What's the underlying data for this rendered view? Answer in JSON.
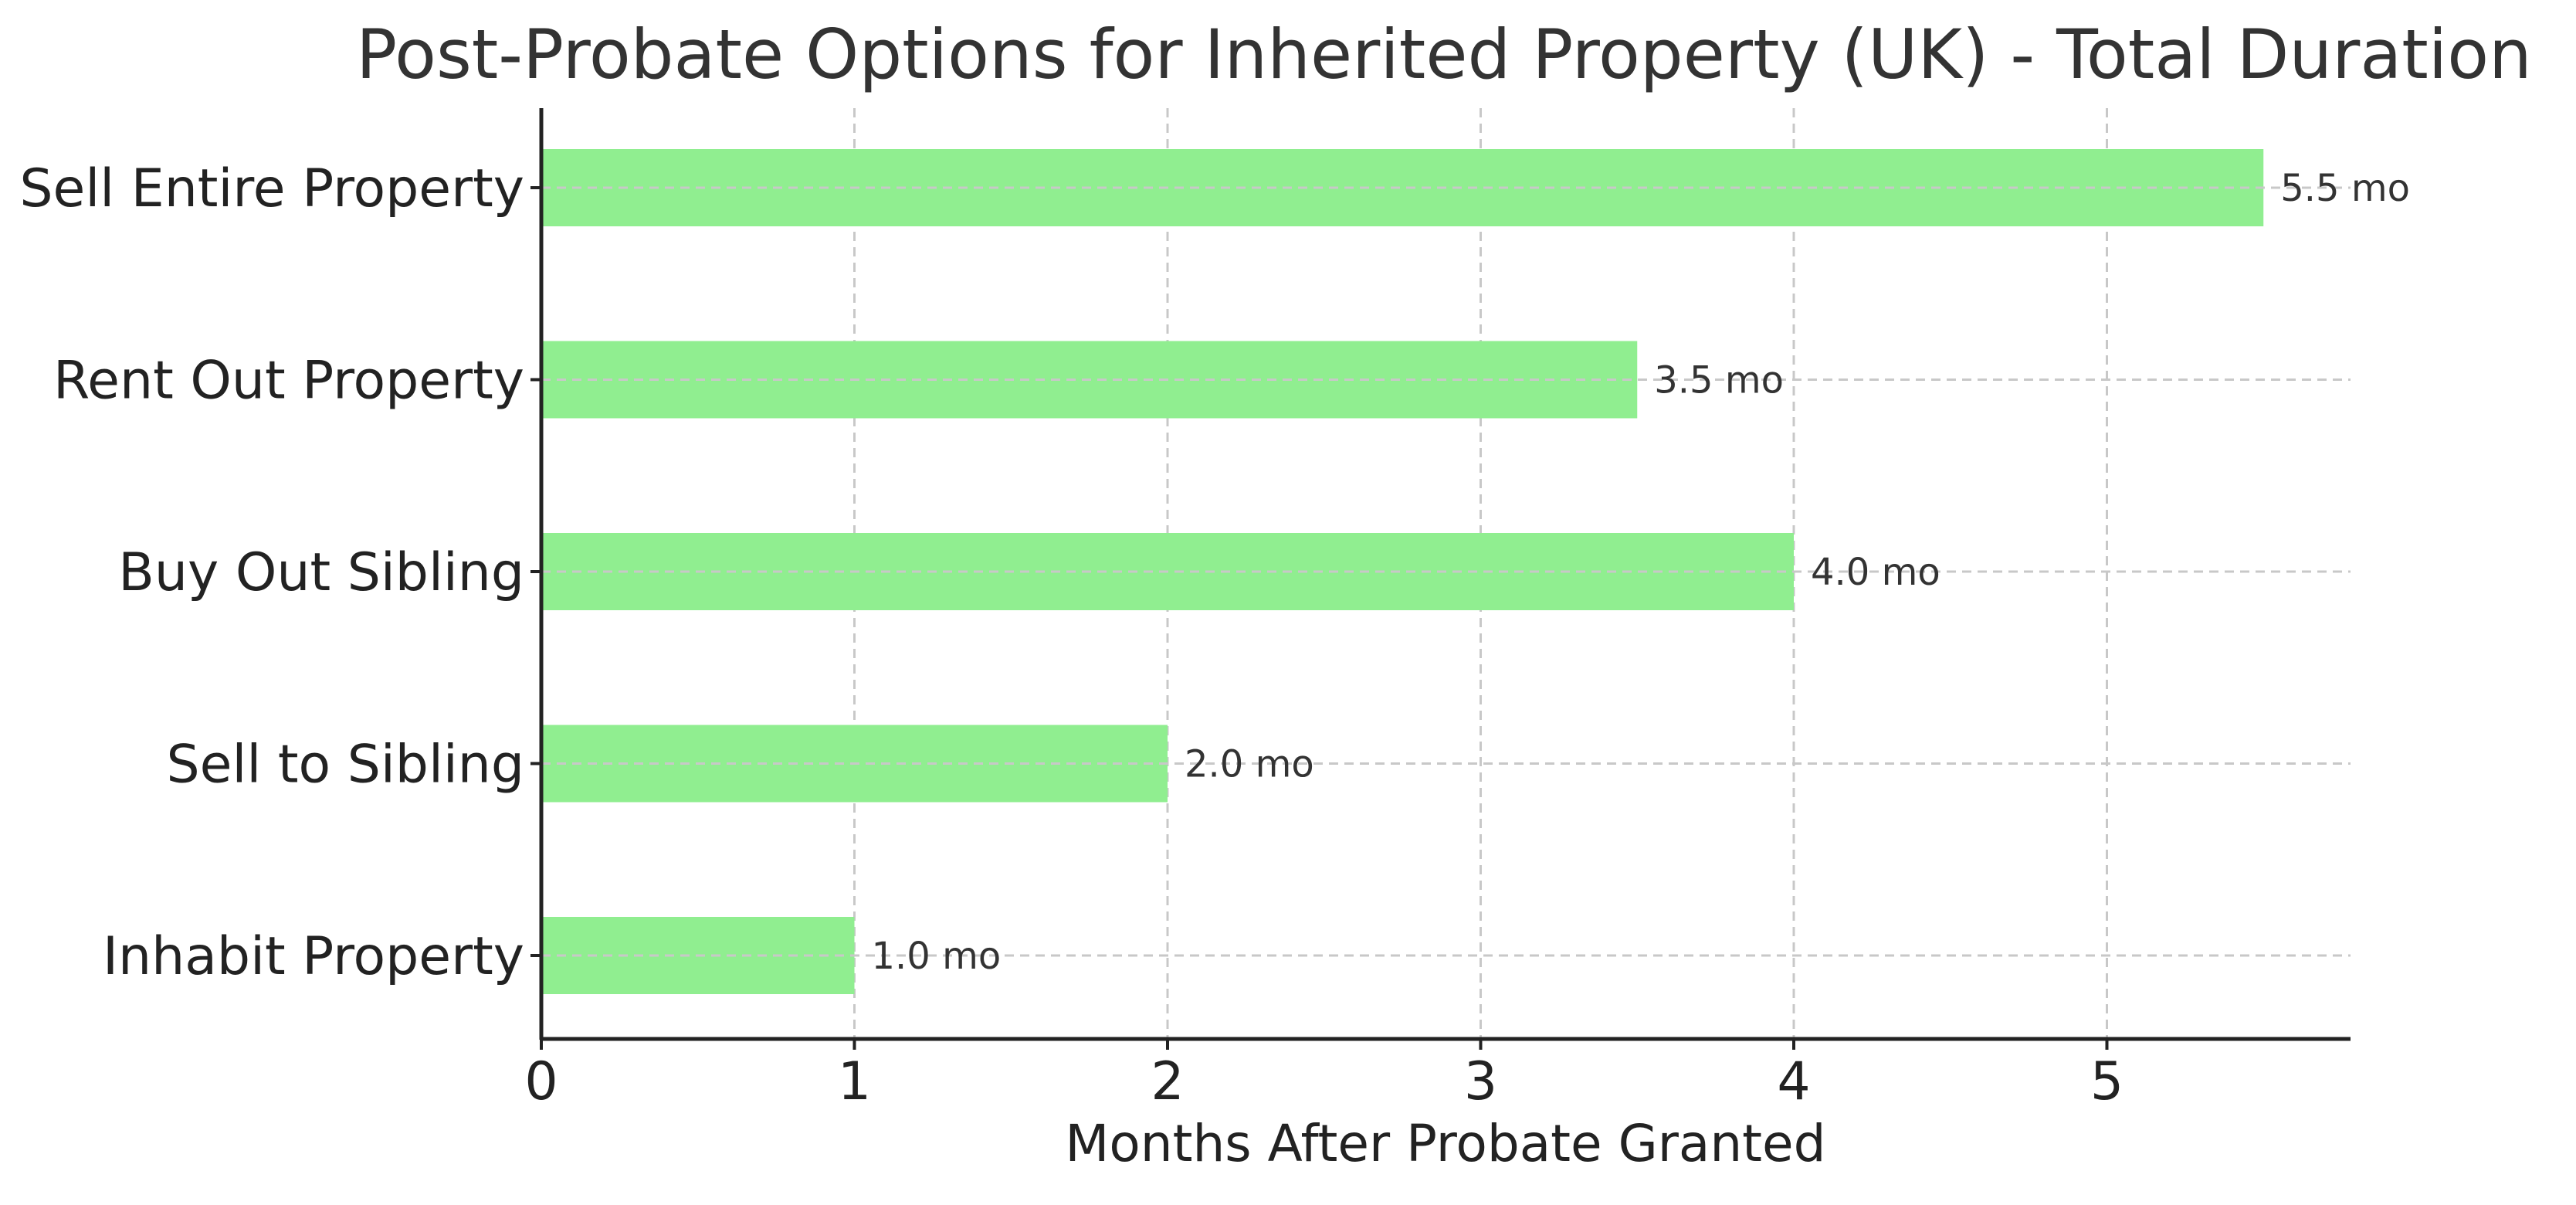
{
  "chart_data": {
    "type": "bar",
    "orientation": "horizontal",
    "title": "Post-Probate Options for Inherited Property (UK) - Total Duration",
    "xlabel": "Months After Probate Granted",
    "ylabel": "",
    "categories": [
      "Inhabit Property",
      "Sell to Sibling",
      "Buy Out Sibling",
      "Rent Out Property",
      "Sell Entire Property"
    ],
    "values": [
      1.0,
      2.0,
      4.0,
      3.5,
      5.5
    ],
    "value_labels": [
      "1.0 mo",
      "2.0 mo",
      "4.0 mo",
      "3.5 mo",
      "5.5 mo"
    ],
    "xlim": [
      0,
      5.78
    ],
    "xticks": [
      0,
      1,
      2,
      3,
      4,
      5
    ],
    "grid": true,
    "grid_style": "dashed",
    "bar_color": "#90ee90",
    "legend": "none"
  }
}
